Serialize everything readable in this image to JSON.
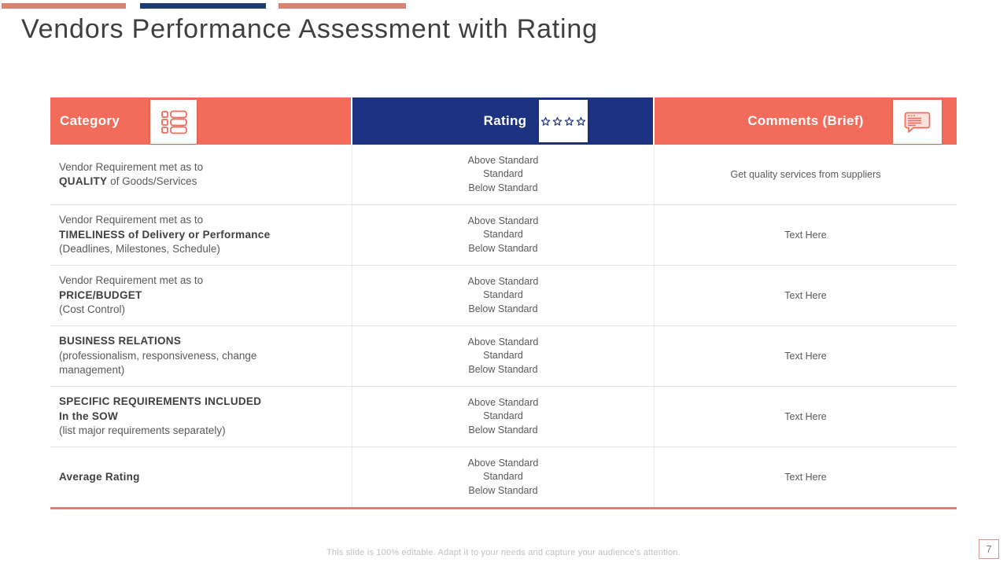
{
  "slide": {
    "title": "Vendors Performance Assessment with Rating",
    "footer": "This slide is 100% editable. Adapt it to your needs and capture your audience's attention.",
    "page_number": "7"
  },
  "colors": {
    "coral": "#F26B5B",
    "navy": "#1E3282",
    "salmon_bar": "#D98375",
    "navy_bar": "#1F3C6E",
    "table_bottom": "#DC8172"
  },
  "table": {
    "headers": [
      {
        "label": "Category",
        "icon": "list-icon"
      },
      {
        "label": "Rating",
        "icon": "four-stars-icon"
      },
      {
        "label": "Comments (Brief)",
        "icon": "comment-icon"
      }
    ],
    "rating_stars": 4,
    "rating_options": [
      "Above Standard",
      "Standard",
      "Below Standard"
    ],
    "rows": [
      {
        "category": [
          [
            {
              "t": "Vendor Requirement met as to",
              "b": false
            }
          ],
          [
            {
              "t": "QUALITY",
              "b": true
            },
            {
              "t": " of Goods/Services",
              "b": false
            }
          ]
        ],
        "comment": "Get quality services from suppliers"
      },
      {
        "category": [
          [
            {
              "t": "Vendor Requirement met as to",
              "b": false
            }
          ],
          [
            {
              "t": "TIMELINESS of Delivery or Performance",
              "b": true
            }
          ],
          [
            {
              "t": "(Deadlines, Milestones, Schedule)",
              "b": false
            }
          ]
        ],
        "comment": "Text Here"
      },
      {
        "category": [
          [
            {
              "t": "Vendor Requirement met as to",
              "b": false
            }
          ],
          [
            {
              "t": "PRICE/BUDGET",
              "b": true
            }
          ],
          [
            {
              "t": "(Cost Control)",
              "b": false
            }
          ]
        ],
        "comment": "Text Here"
      },
      {
        "category": [
          [
            {
              "t": "BUSINESS RELATIONS",
              "b": true
            }
          ],
          [
            {
              "t": "(professionalism, responsiveness, change management)",
              "b": false
            }
          ]
        ],
        "comment": "Text Here"
      },
      {
        "category": [
          [
            {
              "t": "SPECIFIC REQUIREMENTS INCLUDED",
              "b": true
            }
          ],
          [
            {
              "t": "In the SOW",
              "b": true
            }
          ],
          [
            {
              "t": "(list major requirements separately)",
              "b": false
            }
          ]
        ],
        "comment": "Text Here"
      },
      {
        "category": [
          [
            {
              "t": "Average Rating",
              "b": true
            }
          ]
        ],
        "comment": "Text Here"
      }
    ]
  }
}
